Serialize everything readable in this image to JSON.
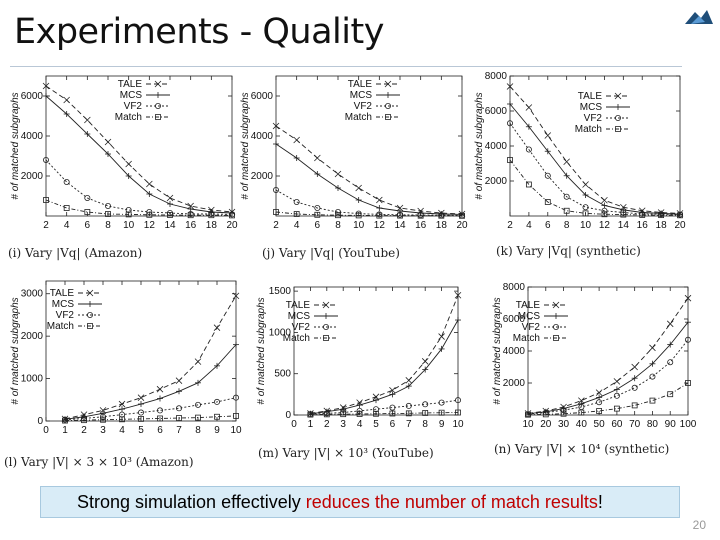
{
  "slide": {
    "title": "Experiments - Quality",
    "callout": {
      "text_before": "Strong simulation effectively ",
      "text_highlight": "reduces the number of match results",
      "text_after": "!",
      "highlight_color": "#c00000"
    },
    "page_number": "20"
  },
  "chart_data": [
    {
      "id": "i",
      "type": "line",
      "caption": "(i) Vary |Vq| (Amazon)",
      "ylabel": "# of matched subgraphs",
      "x": [
        2,
        4,
        6,
        8,
        10,
        12,
        14,
        16,
        18,
        20
      ],
      "ylim": [
        0,
        7000
      ],
      "yticks": [
        "2000",
        "4000",
        "6000"
      ],
      "ytick_values": [
        2000,
        4000,
        6000
      ],
      "xticks": [
        "2",
        "4",
        "6",
        "8",
        "10",
        "12",
        "14",
        "16",
        "18",
        "20"
      ],
      "legend_position": "top-right",
      "series": [
        {
          "name": "TALE",
          "values": [
            6500,
            5800,
            4800,
            3700,
            2600,
            1600,
            900,
            500,
            300,
            200
          ]
        },
        {
          "name": "MCS",
          "values": [
            6000,
            5100,
            4100,
            3100,
            2000,
            1100,
            600,
            350,
            200,
            150
          ]
        },
        {
          "name": "VF2",
          "values": [
            2800,
            1700,
            900,
            500,
            300,
            200,
            150,
            100,
            100,
            80
          ]
        },
        {
          "name": "Match",
          "values": [
            800,
            400,
            200,
            100,
            80,
            60,
            50,
            40,
            40,
            30
          ]
        }
      ]
    },
    {
      "id": "j",
      "type": "line",
      "caption": "(j) Vary |Vq| (YouTube)",
      "ylabel": "# of matched subgraphs",
      "x": [
        2,
        4,
        6,
        8,
        10,
        12,
        14,
        16,
        18,
        20
      ],
      "ylim": [
        0,
        7000
      ],
      "yticks": [
        "2000",
        "4000",
        "6000"
      ],
      "ytick_values": [
        2000,
        4000,
        6000
      ],
      "xticks": [
        "2",
        "4",
        "6",
        "8",
        "10",
        "12",
        "14",
        "16",
        "18",
        "20"
      ],
      "legend_position": "top-right",
      "series": [
        {
          "name": "TALE",
          "values": [
            4500,
            3800,
            2900,
            2100,
            1400,
            800,
            400,
            250,
            150,
            100
          ]
        },
        {
          "name": "MCS",
          "values": [
            3600,
            2900,
            2100,
            1400,
            800,
            400,
            250,
            150,
            100,
            80
          ]
        },
        {
          "name": "VF2",
          "values": [
            1300,
            700,
            400,
            200,
            120,
            80,
            60,
            50,
            40,
            30
          ]
        },
        {
          "name": "Match",
          "values": [
            200,
            100,
            60,
            40,
            30,
            20,
            20,
            15,
            15,
            10
          ]
        }
      ]
    },
    {
      "id": "k",
      "type": "line",
      "caption": "(k) Vary |Vq| (synthetic)",
      "ylabel": "# of matched subgraphs",
      "x": [
        2,
        4,
        6,
        8,
        10,
        12,
        14,
        16,
        18,
        20
      ],
      "ylim": [
        0,
        8000
      ],
      "yticks": [
        "2000",
        "4000",
        "6000",
        "8000"
      ],
      "ytick_values": [
        2000,
        4000,
        6000,
        8000
      ],
      "xticks": [
        "2",
        "4",
        "6",
        "8",
        "10",
        "12",
        "14",
        "16",
        "18",
        "20"
      ],
      "legend_position": "top-right",
      "series": [
        {
          "name": "TALE",
          "values": [
            7400,
            6200,
            4600,
            3100,
            1800,
            900,
            500,
            300,
            200,
            150
          ]
        },
        {
          "name": "MCS",
          "values": [
            6400,
            5100,
            3700,
            2300,
            1200,
            600,
            350,
            200,
            150,
            100
          ]
        },
        {
          "name": "VF2",
          "values": [
            5300,
            3800,
            2300,
            1100,
            500,
            300,
            200,
            120,
            100,
            80
          ]
        },
        {
          "name": "Match",
          "values": [
            3200,
            1800,
            800,
            300,
            150,
            100,
            80,
            60,
            50,
            40
          ]
        }
      ]
    },
    {
      "id": "l",
      "type": "line",
      "caption": "(l) Vary |V| × 3 × 10³ (Amazon)",
      "ylabel": "# of matched subgraphs",
      "x": [
        1,
        2,
        3,
        4,
        5,
        6,
        7,
        8,
        9,
        10
      ],
      "ylim": [
        0,
        3300
      ],
      "yticks": [
        "0",
        "1000",
        "2000",
        "3000"
      ],
      "ytick_values": [
        0,
        1000,
        2000,
        3000
      ],
      "xticks": [
        "0",
        "1",
        "2",
        "3",
        "4",
        "5",
        "6",
        "7",
        "8",
        "9",
        "10"
      ],
      "xlim": [
        0,
        10
      ],
      "legend_position": "top-left",
      "series": [
        {
          "name": "TALE",
          "values": [
            50,
            150,
            250,
            400,
            550,
            750,
            950,
            1400,
            2200,
            2950
          ]
        },
        {
          "name": "MCS",
          "values": [
            40,
            100,
            180,
            280,
            400,
            530,
            700,
            900,
            1300,
            1800
          ]
        },
        {
          "name": "VF2",
          "values": [
            30,
            60,
            100,
            150,
            200,
            250,
            300,
            380,
            450,
            550
          ]
        },
        {
          "name": "Match",
          "values": [
            10,
            20,
            30,
            40,
            50,
            60,
            70,
            80,
            100,
            120
          ]
        }
      ]
    },
    {
      "id": "m",
      "type": "line",
      "caption": "(m) Vary |V| × 10³ (YouTube)",
      "ylabel": "# of matched subgraphs",
      "x": [
        1,
        2,
        3,
        4,
        5,
        6,
        7,
        8,
        9,
        10
      ],
      "ylim": [
        0,
        1550
      ],
      "yticks": [
        "0",
        "500",
        "1000",
        "1500"
      ],
      "ytick_values": [
        0,
        500,
        1000,
        1500
      ],
      "xticks": [
        "0",
        "1",
        "2",
        "3",
        "4",
        "5",
        "6",
        "7",
        "8",
        "9",
        "10"
      ],
      "xlim": [
        0,
        10
      ],
      "legend_position": "top-left",
      "series": [
        {
          "name": "TALE",
          "values": [
            20,
            50,
            90,
            150,
            220,
            300,
            420,
            650,
            950,
            1450
          ]
        },
        {
          "name": "MCS",
          "values": [
            15,
            40,
            70,
            120,
            180,
            250,
            350,
            550,
            800,
            1150
          ]
        },
        {
          "name": "VF2",
          "values": [
            10,
            20,
            30,
            50,
            70,
            90,
            110,
            130,
            150,
            180
          ]
        },
        {
          "name": "Match",
          "values": [
            5,
            8,
            10,
            12,
            15,
            18,
            20,
            25,
            28,
            30
          ]
        }
      ]
    },
    {
      "id": "n",
      "type": "line",
      "caption": "(n) Vary |V| × 10⁴ (synthetic)",
      "ylabel": "# of matched subgraphs",
      "x": [
        10,
        20,
        30,
        40,
        50,
        60,
        70,
        80,
        90,
        100
      ],
      "ylim": [
        0,
        8000
      ],
      "yticks": [
        "2000",
        "4000",
        "6000",
        "8000"
      ],
      "ytick_values": [
        2000,
        4000,
        6000,
        8000
      ],
      "xticks": [
        "10",
        "20",
        "30",
        "40",
        "50",
        "60",
        "70",
        "80",
        "90",
        "100"
      ],
      "legend_position": "top-left",
      "series": [
        {
          "name": "TALE",
          "values": [
            100,
            250,
            500,
            900,
            1400,
            2100,
            3000,
            4200,
            5700,
            7300
          ]
        },
        {
          "name": "MCS",
          "values": [
            80,
            200,
            400,
            700,
            1100,
            1600,
            2300,
            3200,
            4400,
            5800
          ]
        },
        {
          "name": "VF2",
          "values": [
            50,
            150,
            300,
            500,
            800,
            1200,
            1700,
            2400,
            3300,
            4700
          ]
        },
        {
          "name": "Match",
          "values": [
            20,
            40,
            80,
            150,
            250,
            400,
            600,
            900,
            1300,
            2000
          ]
        }
      ]
    }
  ]
}
